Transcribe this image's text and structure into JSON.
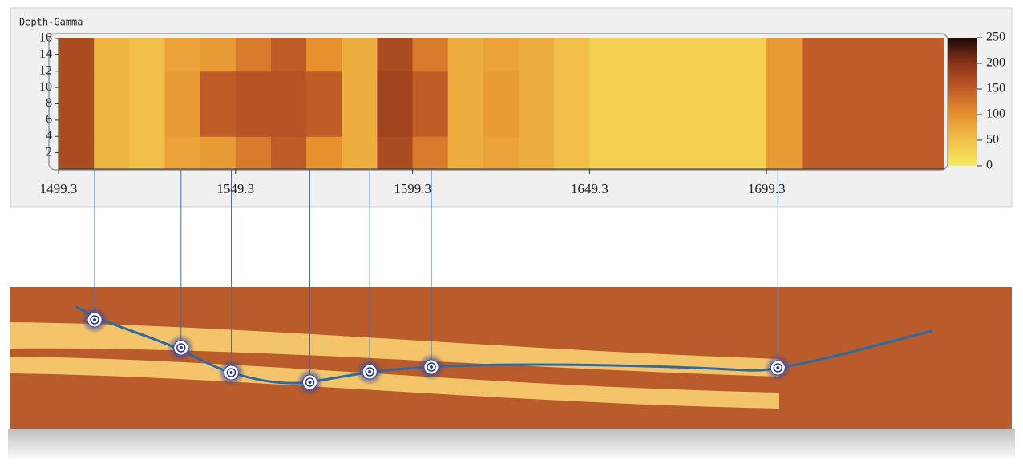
{
  "chart_data": {
    "type": "heatmap",
    "title": "Depth-Gamma",
    "x_edges": [
      1499.3,
      1509.3,
      1519.3,
      1529.3,
      1539.3,
      1549.3,
      1559.3,
      1569.3,
      1579.3,
      1589.3,
      1599.3,
      1609.3,
      1619.3,
      1629.3,
      1639.3,
      1649.3,
      1659.3,
      1669.3,
      1679.3,
      1689.3,
      1699.3,
      1709.3,
      1719.3,
      1729.3,
      1739.3,
      1749.3
    ],
    "y_edges": [
      0,
      4,
      8,
      12,
      16
    ],
    "z": [
      [
        170,
        60,
        50,
        80,
        90,
        120,
        150,
        100,
        70,
        170,
        120,
        70,
        80,
        70,
        50,
        30,
        30,
        30,
        30,
        30,
        90,
        150,
        150,
        150,
        150
      ],
      [
        170,
        60,
        50,
        90,
        150,
        160,
        160,
        150,
        70,
        180,
        150,
        70,
        90,
        70,
        50,
        30,
        30,
        30,
        30,
        30,
        90,
        150,
        150,
        150,
        150
      ],
      [
        170,
        60,
        50,
        90,
        150,
        160,
        160,
        150,
        70,
        180,
        150,
        70,
        90,
        70,
        50,
        30,
        30,
        30,
        30,
        30,
        90,
        150,
        150,
        150,
        150
      ],
      [
        170,
        60,
        50,
        80,
        90,
        120,
        150,
        100,
        70,
        170,
        120,
        70,
        80,
        70,
        50,
        30,
        30,
        30,
        30,
        30,
        90,
        150,
        150,
        150,
        150
      ]
    ],
    "xlim": [
      1499.3,
      1749.3
    ],
    "xticks": [
      1499.3,
      1549.3,
      1599.3,
      1649.3,
      1699.3
    ],
    "ylim": [
      0,
      16
    ],
    "yticks": [
      2,
      4,
      6,
      8,
      10,
      12,
      14,
      16
    ],
    "zlim": [
      0,
      250
    ],
    "zticks": [
      0,
      50,
      100,
      150,
      200,
      250
    ],
    "colorscale": [
      "#f6ea5e",
      "#f2c04a",
      "#e6902e",
      "#c05c28",
      "#8a3418",
      "#1a0806"
    ],
    "markers": [
      1509.5,
      1533.9,
      1548.1,
      1570.3,
      1587.2,
      1604.6,
      1702.5
    ]
  }
}
